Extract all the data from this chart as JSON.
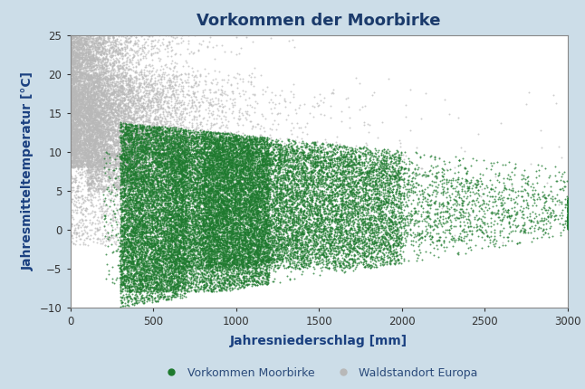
{
  "title": "Vorkommen der Moorbirke",
  "xlabel": "Jahresniederschlag [mm]",
  "ylabel": "Jahresmitteltemperatur [°C]",
  "xlim": [
    0,
    3000
  ],
  "ylim": [
    -10,
    25
  ],
  "xticks": [
    0,
    500,
    1000,
    1500,
    2000,
    2500,
    3000
  ],
  "yticks": [
    -10,
    -5,
    0,
    5,
    10,
    15,
    20,
    25
  ],
  "background_color": "#ccdde8",
  "plot_bg_color": "#ffffff",
  "title_color": "#1a3a6b",
  "axis_label_color": "#1a4080",
  "tick_color": "#333333",
  "legend_label_moorbirke": "Vorkommen Moorbirke",
  "legend_label_europa": "Waldstandort Europa",
  "color_moorbirke": "#1e7a2e",
  "color_europa": "#b8b8b8",
  "n_europa": 12000,
  "n_moorbirke": 30000
}
